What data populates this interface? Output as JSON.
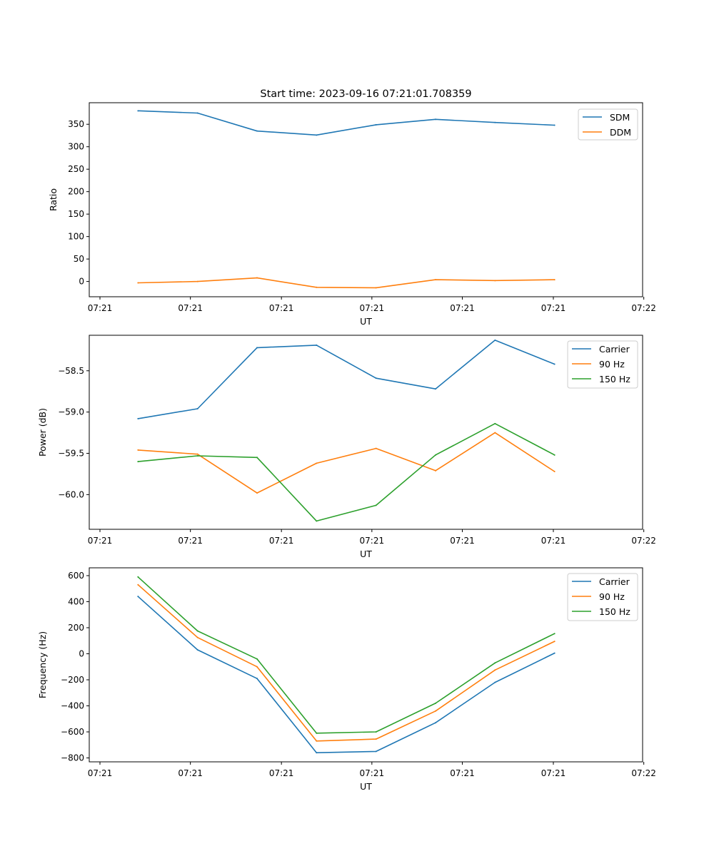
{
  "chart_data": [
    {
      "type": "line",
      "title": "Start time: 2023-09-16 07:21:01.708359",
      "xlabel": "UT",
      "ylabel": "Ratio",
      "x": [
        1,
        2,
        3,
        4,
        5,
        6,
        7,
        8
      ],
      "xlim": [
        0.18,
        9.48
      ],
      "ylim": [
        -34,
        398
      ],
      "x_ticks": [
        {
          "value": 0.36,
          "label": "07:21"
        },
        {
          "value": 1.88,
          "label": "07:21"
        },
        {
          "value": 3.41,
          "label": "07:21"
        },
        {
          "value": 4.93,
          "label": "07:21"
        },
        {
          "value": 6.45,
          "label": "07:21"
        },
        {
          "value": 7.98,
          "label": "07:21"
        },
        {
          "value": 9.5,
          "label": "07:22"
        }
      ],
      "y_ticks": [
        {
          "value": 0,
          "label": "0"
        },
        {
          "value": 50,
          "label": "50"
        },
        {
          "value": 100,
          "label": "100"
        },
        {
          "value": 150,
          "label": "150"
        },
        {
          "value": 200,
          "label": "200"
        },
        {
          "value": 250,
          "label": "250"
        },
        {
          "value": 300,
          "label": "300"
        },
        {
          "value": 350,
          "label": "350"
        }
      ],
      "legend_position": "upper-right",
      "series": [
        {
          "name": "SDM",
          "color": "#1f77b4",
          "values": [
            380,
            375,
            335,
            326,
            349,
            361,
            354,
            348
          ]
        },
        {
          "name": "DDM",
          "color": "#ff7f0e",
          "values": [
            -3,
            0,
            8,
            -13,
            -14,
            4,
            2,
            4
          ]
        }
      ]
    },
    {
      "type": "line",
      "title": "",
      "xlabel": "UT",
      "ylabel": "Power (dB)",
      "x": [
        1,
        2,
        3,
        4,
        5,
        6,
        7,
        8
      ],
      "xlim": [
        0.18,
        9.48
      ],
      "ylim": [
        -60.42,
        -58.07
      ],
      "x_ticks": [
        {
          "value": 0.36,
          "label": "07:21"
        },
        {
          "value": 1.88,
          "label": "07:21"
        },
        {
          "value": 3.41,
          "label": "07:21"
        },
        {
          "value": 4.93,
          "label": "07:21"
        },
        {
          "value": 6.45,
          "label": "07:21"
        },
        {
          "value": 7.98,
          "label": "07:21"
        },
        {
          "value": 9.5,
          "label": "07:22"
        }
      ],
      "y_ticks": [
        {
          "value": -60.0,
          "label": "−60.0"
        },
        {
          "value": -59.5,
          "label": "−59.5"
        },
        {
          "value": -59.0,
          "label": "−59.0"
        },
        {
          "value": -58.5,
          "label": "−58.5"
        }
      ],
      "legend_position": "upper-right",
      "series": [
        {
          "name": "Carrier",
          "color": "#1f77b4",
          "values": [
            -59.08,
            -58.96,
            -58.22,
            -58.19,
            -58.59,
            -58.72,
            -58.13,
            -58.42
          ]
        },
        {
          "name": "90 Hz",
          "color": "#ff7f0e",
          "values": [
            -59.46,
            -59.51,
            -59.98,
            -59.62,
            -59.44,
            -59.71,
            -59.25,
            -59.72
          ]
        },
        {
          "name": "150 Hz",
          "color": "#2ca02c",
          "values": [
            -59.6,
            -59.53,
            -59.55,
            -60.32,
            -60.13,
            -59.52,
            -59.14,
            -59.52
          ]
        }
      ]
    },
    {
      "type": "line",
      "title": "",
      "xlabel": "UT",
      "ylabel": "Frequency (Hz)",
      "x": [
        1,
        2,
        3,
        4,
        5,
        6,
        7,
        8
      ],
      "xlim": [
        0.18,
        9.48
      ],
      "ylim": [
        -830,
        660
      ],
      "x_ticks": [
        {
          "value": 0.36,
          "label": "07:21"
        },
        {
          "value": 1.88,
          "label": "07:21"
        },
        {
          "value": 3.41,
          "label": "07:21"
        },
        {
          "value": 4.93,
          "label": "07:21"
        },
        {
          "value": 6.45,
          "label": "07:21"
        },
        {
          "value": 7.98,
          "label": "07:21"
        },
        {
          "value": 9.5,
          "label": "07:22"
        }
      ],
      "y_ticks": [
        {
          "value": -800,
          "label": "−800"
        },
        {
          "value": -600,
          "label": "−600"
        },
        {
          "value": -400,
          "label": "−400"
        },
        {
          "value": -200,
          "label": "−200"
        },
        {
          "value": 0,
          "label": "0"
        },
        {
          "value": 200,
          "label": "200"
        },
        {
          "value": 400,
          "label": "400"
        },
        {
          "value": 600,
          "label": "600"
        }
      ],
      "legend_position": "upper-right",
      "series": [
        {
          "name": "Carrier",
          "color": "#1f77b4",
          "values": [
            440,
            30,
            -190,
            -760,
            -750,
            -530,
            -220,
            5
          ]
        },
        {
          "name": "90 Hz",
          "color": "#ff7f0e",
          "values": [
            530,
            125,
            -100,
            -670,
            -655,
            -440,
            -125,
            95
          ]
        },
        {
          "name": "150 Hz",
          "color": "#2ca02c",
          "values": [
            590,
            175,
            -40,
            -610,
            -600,
            -380,
            -70,
            155
          ]
        }
      ]
    }
  ]
}
